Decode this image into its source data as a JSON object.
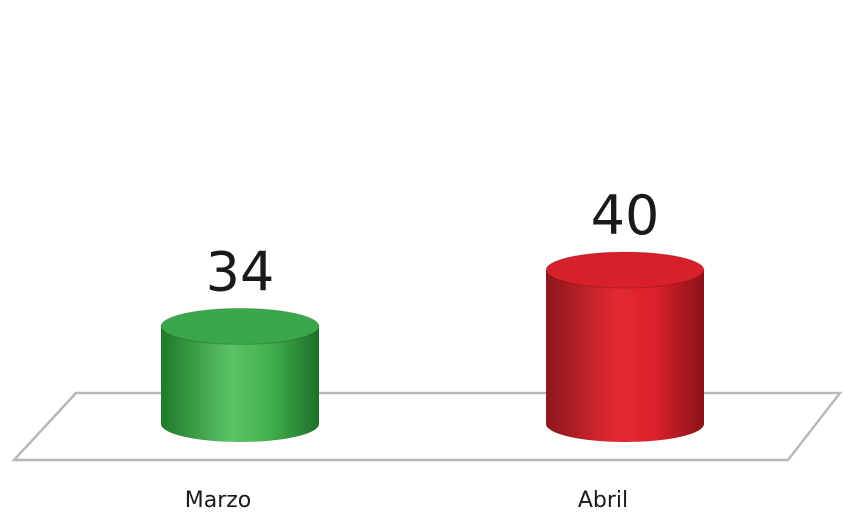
{
  "chart_data": {
    "type": "bar",
    "style": "3d-cylinder",
    "categories": [
      "Marzo",
      "Abril"
    ],
    "values": [
      34,
      40
    ],
    "data_labels": [
      "34",
      "40"
    ],
    "colors": [
      "#3aa84a",
      "#d8202a"
    ],
    "title": "",
    "xlabel": "",
    "ylabel": "",
    "grid": false,
    "legend": "none"
  }
}
